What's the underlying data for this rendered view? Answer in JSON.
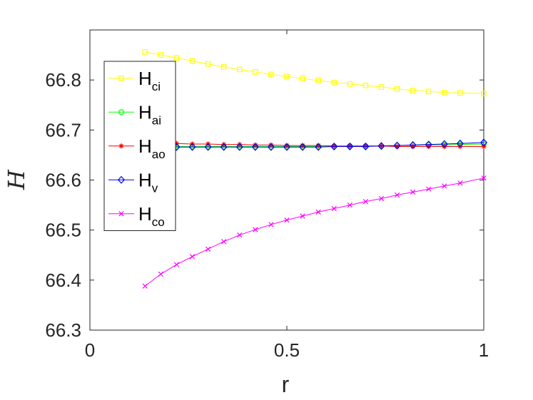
{
  "chart_data": {
    "type": "line",
    "xlabel": "r",
    "ylabel": "H",
    "xlim": [
      0,
      1
    ],
    "ylim": [
      66.3,
      66.9
    ],
    "xticks": [
      {
        "value": 0,
        "label": "0"
      },
      {
        "value": 0.5,
        "label": "0.5"
      },
      {
        "value": 1,
        "label": "1"
      }
    ],
    "yticks": [
      {
        "value": 66.3,
        "label": "66.3"
      },
      {
        "value": 66.4,
        "label": "66.4"
      },
      {
        "value": 66.5,
        "label": "66.5"
      },
      {
        "value": 66.6,
        "label": "66.6"
      },
      {
        "value": 66.7,
        "label": "66.7"
      },
      {
        "value": 66.8,
        "label": "66.8"
      }
    ],
    "grid": false,
    "legend_position": "top-left",
    "x": [
      0.14,
      0.18,
      0.22,
      0.26,
      0.3,
      0.34,
      0.38,
      0.42,
      0.46,
      0.5,
      0.54,
      0.58,
      0.62,
      0.66,
      0.7,
      0.74,
      0.78,
      0.82,
      0.86,
      0.9,
      0.94,
      1.0
    ],
    "series": [
      {
        "name": "H",
        "sub": "ci",
        "color": "#ffff00",
        "marker": "square",
        "values": [
          66.856,
          66.85,
          66.844,
          66.838,
          66.832,
          66.826,
          66.821,
          66.816,
          66.811,
          66.807,
          66.803,
          66.799,
          66.795,
          66.792,
          66.789,
          66.786,
          66.782,
          66.779,
          66.777,
          66.775,
          66.774,
          66.773
        ]
      },
      {
        "name": "H",
        "sub": "ai",
        "color": "#00ff00",
        "marker": "circle",
        "values": [
          66.667,
          66.667,
          66.667,
          66.667,
          66.667,
          66.667,
          66.667,
          66.667,
          66.667,
          66.667,
          66.667,
          66.667,
          66.667,
          66.668,
          66.668,
          66.668,
          66.669,
          66.669,
          66.67,
          66.67,
          66.671,
          66.672
        ]
      },
      {
        "name": "H",
        "sub": "ao",
        "color": "#ff0000",
        "marker": "asterisk",
        "values": [
          66.673,
          66.673,
          66.673,
          66.672,
          66.672,
          66.671,
          66.671,
          66.67,
          66.67,
          66.669,
          66.669,
          66.669,
          66.668,
          66.668,
          66.668,
          66.668,
          66.667,
          66.667,
          66.667,
          66.667,
          66.667,
          66.667
        ]
      },
      {
        "name": "H",
        "sub": "v",
        "color": "#0000ff",
        "marker": "diamond",
        "values": [
          66.666,
          66.666,
          66.666,
          66.666,
          66.666,
          66.666,
          66.666,
          66.666,
          66.666,
          66.666,
          66.666,
          66.666,
          66.667,
          66.667,
          66.667,
          66.668,
          66.669,
          66.67,
          66.671,
          66.672,
          66.673,
          66.675
        ]
      },
      {
        "name": "H",
        "sub": "co",
        "color": "#ff00ff",
        "marker": "cross",
        "values": [
          66.388,
          66.412,
          66.431,
          66.447,
          66.462,
          66.477,
          66.49,
          66.501,
          66.511,
          66.52,
          66.528,
          66.536,
          66.543,
          66.55,
          66.557,
          66.563,
          66.57,
          66.576,
          66.582,
          66.588,
          66.594,
          66.604
        ]
      }
    ]
  }
}
